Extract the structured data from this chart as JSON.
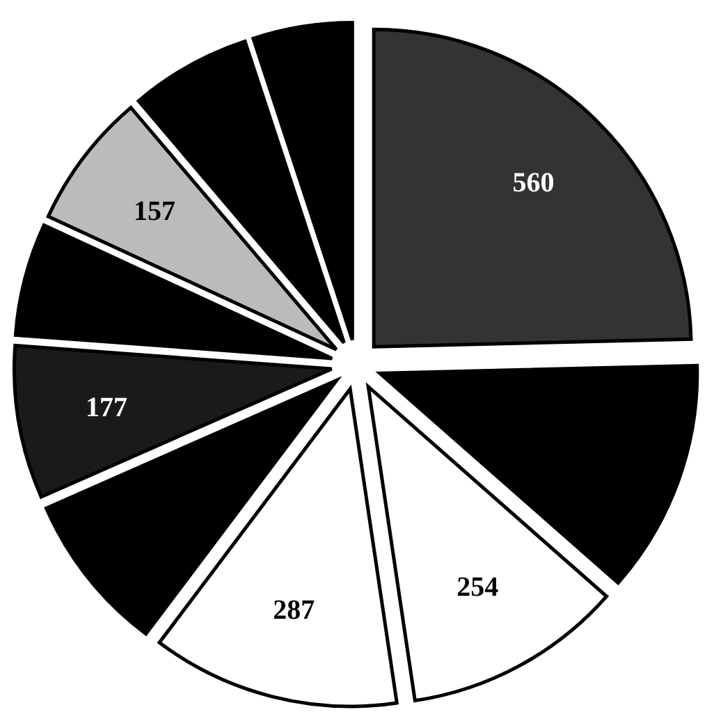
{
  "chart_data": {
    "type": "pie",
    "categories": [
      null,
      null,
      null,
      null,
      null,
      null,
      null,
      null,
      null,
      null
    ],
    "values": [
      560,
      270,
      254,
      287,
      185,
      177,
      130,
      157,
      140,
      115
    ],
    "colors": [
      "#333333",
      "#000000",
      "#ffffff",
      "#ffffff",
      "#000000",
      "#1a1a1a",
      "#000000",
      "#bbbbbb",
      "#000000",
      "#000000"
    ],
    "value_labels": [
      "560",
      null,
      "254",
      "287",
      null,
      "177",
      null,
      "157",
      null,
      null
    ]
  }
}
